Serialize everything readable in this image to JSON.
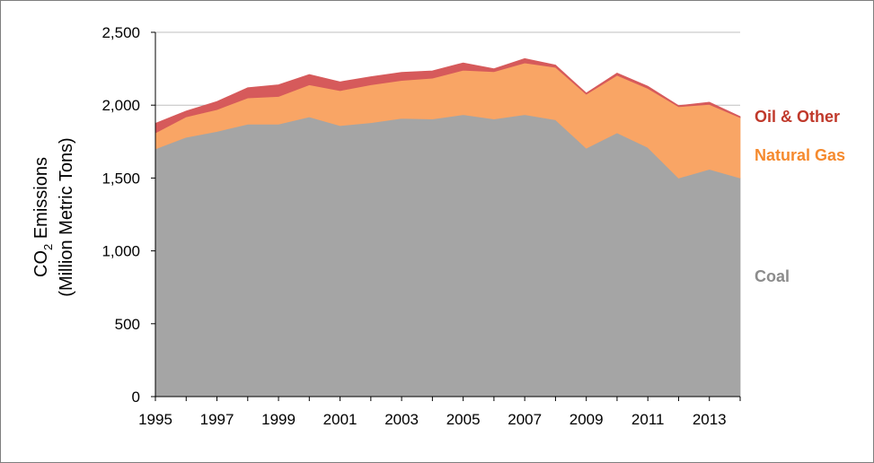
{
  "chart_data": {
    "type": "area",
    "stacked": true,
    "x": [
      1995,
      1996,
      1997,
      1998,
      1999,
      2000,
      2001,
      2002,
      2003,
      2004,
      2005,
      2006,
      2007,
      2008,
      2009,
      2010,
      2011,
      2012,
      2013,
      2014
    ],
    "xticks": [
      "1995",
      "1997",
      "1999",
      "2001",
      "2003",
      "2005",
      "2007",
      "2009",
      "2011",
      "2013"
    ],
    "yticks": [
      "0",
      "500",
      "1,000",
      "1,500",
      "2,000",
      "2,500"
    ],
    "ylim": [
      0,
      2500
    ],
    "ylabel_line1_main": "CO",
    "ylabel_line1_sub": "2",
    "ylabel_line1_rest": " Emissions",
    "ylabel_line2": "(Million Metric Tons)",
    "grid": "horizontal",
    "series": [
      {
        "name": "Coal",
        "color": "#a5a5a5",
        "values": [
          1700,
          1780,
          1820,
          1870,
          1870,
          1920,
          1860,
          1880,
          1910,
          1905,
          1935,
          1905,
          1935,
          1900,
          1705,
          1810,
          1710,
          1500,
          1560,
          1500
        ]
      },
      {
        "name": "Natural Gas",
        "color": "#f9a565",
        "values": [
          110,
          140,
          150,
          180,
          190,
          220,
          240,
          260,
          260,
          280,
          305,
          325,
          355,
          360,
          370,
          395,
          405,
          490,
          445,
          415
        ]
      },
      {
        "name": "Oil & Other",
        "color": "#d65a5b",
        "values": [
          65,
          40,
          55,
          70,
          80,
          70,
          60,
          55,
          55,
          50,
          50,
          20,
          30,
          15,
          8,
          15,
          15,
          7,
          15,
          7
        ]
      }
    ]
  }
}
